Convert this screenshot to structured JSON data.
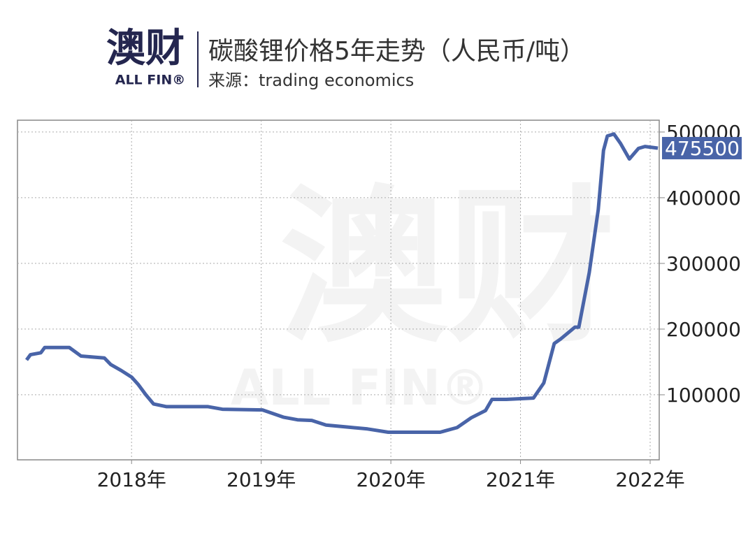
{
  "header": {
    "logo": "澳财",
    "logo_en": "ALL FIN®"
  },
  "chart_data": {
    "type": "line",
    "title": "碳酸锂价格5年走势（人民币/吨）",
    "subtitle": "来源：trading economics",
    "x": [
      2017.19,
      2017.22,
      2017.3,
      2017.33,
      2017.52,
      2017.61,
      2017.79,
      2017.84,
      2017.92,
      2018.0,
      2018.05,
      2018.11,
      2018.17,
      2018.27,
      2018.59,
      2018.7,
      2019.01,
      2019.17,
      2019.28,
      2019.39,
      2019.5,
      2019.66,
      2019.82,
      2019.98,
      2020.38,
      2020.51,
      2020.62,
      2020.73,
      2020.78,
      2020.89,
      2021.1,
      2021.18,
      2021.26,
      2021.31,
      2021.42,
      2021.45,
      2021.53,
      2021.6,
      2021.64,
      2021.67,
      2021.72,
      2021.77,
      2021.84,
      2021.91,
      2021.96,
      2022.06
    ],
    "series": [
      {
        "name": "碳酸锂",
        "color": "#4964a8",
        "values": [
          153000,
          161000,
          164000,
          172000,
          172000,
          159000,
          156000,
          146000,
          137000,
          127000,
          116000,
          100000,
          86000,
          82000,
          82000,
          78000,
          77000,
          66000,
          62000,
          61000,
          54000,
          51000,
          48000,
          43000,
          43000,
          50000,
          65000,
          76000,
          93000,
          93000,
          95000,
          118000,
          178000,
          185000,
          203000,
          203000,
          286000,
          382000,
          472000,
          494000,
          497000,
          483000,
          459000,
          475000,
          478000,
          475500
        ]
      }
    ],
    "xlim": [
      2017.12,
      2022.07
    ],
    "xticks": [
      {
        "value": 2018,
        "label": "2018年"
      },
      {
        "value": 2019,
        "label": "2019年"
      },
      {
        "value": 2020,
        "label": "2020年"
      },
      {
        "value": 2021,
        "label": "2021年"
      },
      {
        "value": 2022,
        "label": "2022年"
      }
    ],
    "ylim": [
      1000,
      518000
    ],
    "yticks": [
      100000,
      200000,
      300000,
      400000,
      500000
    ],
    "grid": true
  }
}
